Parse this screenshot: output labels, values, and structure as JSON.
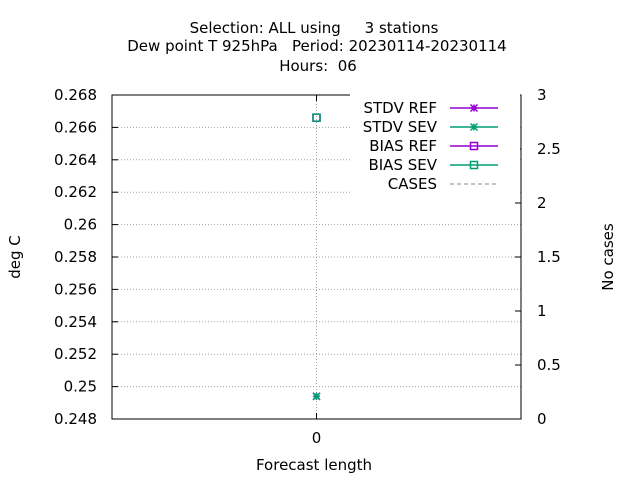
{
  "chart_data": {
    "type": "line",
    "title_lines": [
      "Selection: ALL using     3 stations",
      "Dew point T 925hPa   Period: 20230114-20230114",
      "Hours:  06"
    ],
    "xlabel": "Forecast length",
    "ylabel": "deg C",
    "y2label": "No cases",
    "x_ticks": [
      "0"
    ],
    "xlim": [
      -1,
      1
    ],
    "ylim": [
      0.248,
      0.268
    ],
    "y_ticks": [
      "0.248",
      "0.25",
      "0.252",
      "0.254",
      "0.256",
      "0.258",
      "0.26",
      "0.262",
      "0.264",
      "0.266",
      "0.268"
    ],
    "y2lim": [
      0,
      3
    ],
    "y2_ticks": [
      "0",
      "0.5",
      "1",
      "1.5",
      "2",
      "2.5",
      "3"
    ],
    "grid": true,
    "legend_position": "top-right",
    "series": [
      {
        "name": "STDV REF",
        "marker": "x-star",
        "color": "#9400d3",
        "axis": "y",
        "x": [
          0
        ],
        "values": [
          0.2494
        ]
      },
      {
        "name": "STDV SEV",
        "marker": "x-star",
        "color": "#009e73",
        "axis": "y",
        "x": [
          0
        ],
        "values": [
          0.2494
        ]
      },
      {
        "name": "BIAS REF",
        "marker": "square",
        "color": "#9400d3",
        "axis": "y",
        "x": [
          0
        ],
        "values": [
          0.2666
        ]
      },
      {
        "name": "BIAS SEV",
        "marker": "square",
        "color": "#009e73",
        "axis": "y",
        "x": [
          0
        ],
        "values": [
          0.2666
        ]
      },
      {
        "name": "CASES",
        "marker": "none",
        "dashed": true,
        "color": "#a0a0a0",
        "axis": "y2",
        "x": [
          0
        ],
        "values": [
          3
        ]
      }
    ]
  }
}
